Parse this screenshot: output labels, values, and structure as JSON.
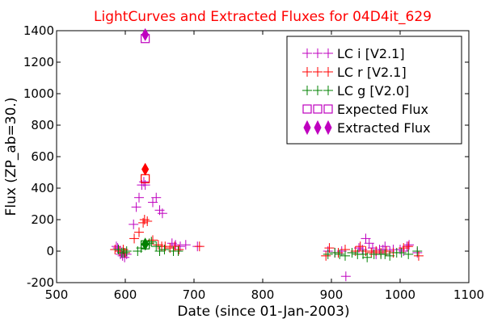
{
  "chart_data": {
    "type": "scatter",
    "title": "LightCurves and Extracted Fluxes for 04D4it_629",
    "title_color": "#ff0000",
    "xlabel": "Date (since 01-Jan-2003)",
    "ylabel": "Flux (ZP_ab=30.)",
    "xlim": [
      500,
      1100
    ],
    "ylim": [
      -200,
      1400
    ],
    "xticks": [
      "500",
      "600",
      "700",
      "800",
      "900",
      "1000",
      "1100"
    ],
    "yticks": [
      "-200",
      "0",
      "200",
      "400",
      "600",
      "800",
      "1000",
      "1200",
      "1400"
    ],
    "grid": false,
    "legend_position": "top-right",
    "series": [
      {
        "name": "LC i [V2.1]",
        "marker": "plus",
        "color": "#bf00bf",
        "points": [
          [
            587,
            30
          ],
          [
            589,
            20
          ],
          [
            593,
            -20
          ],
          [
            596,
            -30
          ],
          [
            599,
            -40
          ],
          [
            602,
            -20
          ],
          [
            612,
            170
          ],
          [
            616,
            280
          ],
          [
            620,
            340
          ],
          [
            624,
            420
          ],
          [
            627,
            440
          ],
          [
            629,
            420
          ],
          [
            640,
            310
          ],
          [
            645,
            340
          ],
          [
            650,
            260
          ],
          [
            654,
            240
          ],
          [
            668,
            50
          ],
          [
            673,
            40
          ],
          [
            680,
            30
          ],
          [
            688,
            40
          ],
          [
            705,
            30
          ],
          [
            895,
            0
          ],
          [
            905,
            -10
          ],
          [
            915,
            0
          ],
          [
            921,
            -160
          ],
          [
            930,
            -10
          ],
          [
            940,
            20
          ],
          [
            945,
            10
          ],
          [
            950,
            80
          ],
          [
            955,
            50
          ],
          [
            960,
            20
          ],
          [
            965,
            -20
          ],
          [
            970,
            10
          ],
          [
            975,
            10
          ],
          [
            978,
            30
          ],
          [
            985,
            0
          ],
          [
            990,
            10
          ],
          [
            1000,
            10
          ],
          [
            1005,
            0
          ],
          [
            1010,
            30
          ],
          [
            1013,
            40
          ],
          [
            1025,
            -10
          ]
        ]
      },
      {
        "name": "LC r [V2.1]",
        "marker": "plus",
        "color": "#ff0000",
        "points": [
          [
            585,
            10
          ],
          [
            592,
            0
          ],
          [
            597,
            10
          ],
          [
            600,
            -10
          ],
          [
            613,
            80
          ],
          [
            620,
            120
          ],
          [
            626,
            180
          ],
          [
            628,
            200
          ],
          [
            632,
            190
          ],
          [
            640,
            70
          ],
          [
            648,
            40
          ],
          [
            653,
            30
          ],
          [
            658,
            30
          ],
          [
            665,
            20
          ],
          [
            672,
            30
          ],
          [
            678,
            10
          ],
          [
            708,
            30
          ],
          [
            892,
            -30
          ],
          [
            897,
            20
          ],
          [
            910,
            -10
          ],
          [
            920,
            10
          ],
          [
            935,
            0
          ],
          [
            942,
            30
          ],
          [
            950,
            0
          ],
          [
            958,
            -10
          ],
          [
            965,
            0
          ],
          [
            972,
            -10
          ],
          [
            980,
            0
          ],
          [
            990,
            -10
          ],
          [
            1005,
            20
          ],
          [
            1012,
            30
          ],
          [
            1027,
            -30
          ]
        ]
      },
      {
        "name": "LC g [V2.0]",
        "marker": "plus",
        "color": "#008000",
        "points": [
          [
            590,
            10
          ],
          [
            595,
            -10
          ],
          [
            598,
            -10
          ],
          [
            602,
            0
          ],
          [
            618,
            0
          ],
          [
            623,
            20
          ],
          [
            630,
            40
          ],
          [
            635,
            50
          ],
          [
            638,
            60
          ],
          [
            645,
            30
          ],
          [
            650,
            0
          ],
          [
            657,
            10
          ],
          [
            670,
            0
          ],
          [
            677,
            0
          ],
          [
            895,
            -20
          ],
          [
            905,
            -10
          ],
          [
            912,
            -20
          ],
          [
            920,
            -30
          ],
          [
            930,
            -10
          ],
          [
            938,
            -20
          ],
          [
            946,
            -20
          ],
          [
            952,
            -40
          ],
          [
            962,
            -20
          ],
          [
            972,
            -20
          ],
          [
            978,
            -20
          ],
          [
            985,
            -30
          ],
          [
            995,
            -10
          ],
          [
            1002,
            -10
          ],
          [
            1012,
            -20
          ],
          [
            1025,
            0
          ]
        ]
      },
      {
        "name": "Expected Flux",
        "marker": "square",
        "color": "#bf00bf",
        "color_r": "#ff0000",
        "color_g": "#008000",
        "points": [
          [
            629,
            1350,
            "#bf00bf"
          ],
          [
            629,
            460,
            "#ff0000"
          ],
          [
            629,
            40,
            "#008000"
          ]
        ]
      },
      {
        "name": "Extracted Flux",
        "marker": "diamond",
        "color": "#bf00bf",
        "points": [
          [
            629,
            1375,
            "#bf00bf"
          ],
          [
            629,
            520,
            "#ff0000"
          ],
          [
            629,
            45,
            "#008000"
          ]
        ]
      }
    ]
  }
}
